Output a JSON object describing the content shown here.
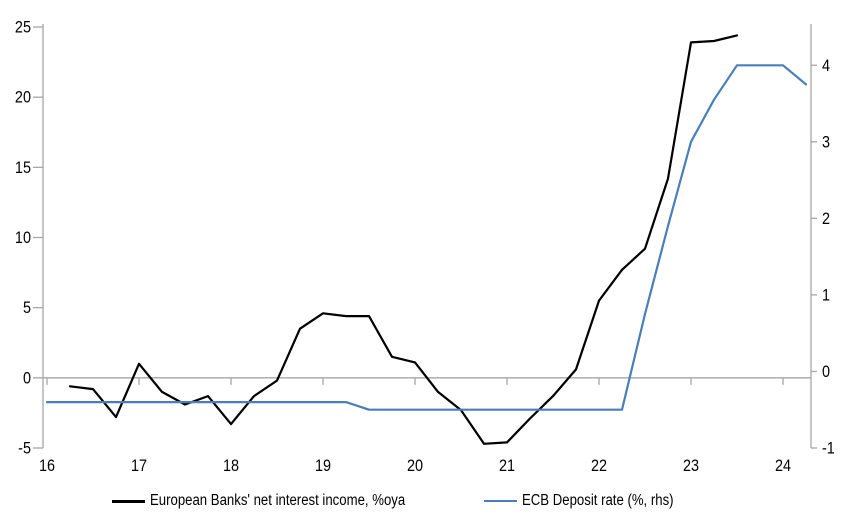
{
  "chart_data": {
    "type": "line",
    "title": "",
    "x_axis": {
      "label": "",
      "ticks": [
        16,
        17,
        18,
        19,
        20,
        21,
        22,
        23,
        24
      ],
      "range": [
        16,
        24.3
      ]
    },
    "left_y_axis": {
      "label": "",
      "ticks": [
        -5,
        0,
        5,
        10,
        15,
        20,
        25
      ],
      "range": [
        -5,
        25
      ]
    },
    "right_y_axis": {
      "label": "",
      "ticks": [
        -1,
        0,
        1,
        2,
        3,
        4
      ],
      "range": [
        -1,
        4.5
      ]
    },
    "grid": "zero-line-only",
    "legend_position": "bottom",
    "series": [
      {
        "id": "nii",
        "name": "European Banks' net interest income, %oya",
        "axis": "left",
        "color": "#000000",
        "x": [
          16.25,
          16.5,
          16.75,
          17.0,
          17.25,
          17.5,
          17.75,
          18.0,
          18.25,
          18.5,
          18.75,
          19.0,
          19.25,
          19.5,
          19.75,
          20.0,
          20.25,
          20.5,
          20.75,
          21.0,
          21.25,
          21.5,
          21.75,
          22.0,
          22.25,
          22.5,
          22.75,
          23.0,
          23.25,
          23.5
        ],
        "values": [
          -0.6,
          -0.8,
          -2.8,
          1.0,
          -1.0,
          -1.9,
          -1.3,
          -3.3,
          -1.3,
          -0.2,
          3.5,
          4.6,
          4.4,
          4.4,
          1.5,
          1.1,
          -1.0,
          -2.3,
          -4.7,
          -4.6,
          -2.9,
          -1.3,
          0.6,
          5.5,
          7.7,
          9.2,
          14.2,
          23.9,
          24.0,
          24.4
        ]
      },
      {
        "id": "ecb-deposit-rate",
        "name": "ECB Deposit rate (%, rhs)",
        "axis": "right",
        "color": "#4a7ebb",
        "x": [
          16.0,
          16.25,
          16.5,
          16.75,
          17.0,
          17.25,
          17.5,
          17.75,
          18.0,
          18.25,
          18.5,
          18.75,
          19.0,
          19.25,
          19.5,
          19.75,
          20.0,
          20.25,
          20.5,
          20.75,
          21.0,
          21.25,
          21.5,
          21.75,
          22.0,
          22.25,
          22.5,
          22.75,
          23.0,
          23.25,
          23.5,
          23.75,
          24.0,
          24.25
        ],
        "values": [
          -0.4,
          -0.4,
          -0.4,
          -0.4,
          -0.4,
          -0.4,
          -0.4,
          -0.4,
          -0.4,
          -0.4,
          -0.4,
          -0.4,
          -0.4,
          -0.4,
          -0.5,
          -0.5,
          -0.5,
          -0.5,
          -0.5,
          -0.5,
          -0.5,
          -0.5,
          -0.5,
          -0.5,
          -0.5,
          -0.5,
          0.75,
          1.9,
          3.0,
          3.55,
          4.0,
          4.0,
          4.0,
          3.75
        ]
      }
    ]
  },
  "colors": {
    "background": "#ffffff",
    "axis": "#a6a6a6",
    "zero_line": "#a6a6a6",
    "text": "#000000",
    "series_nii": "#000000",
    "series_ecb": "#4a7ebb"
  }
}
